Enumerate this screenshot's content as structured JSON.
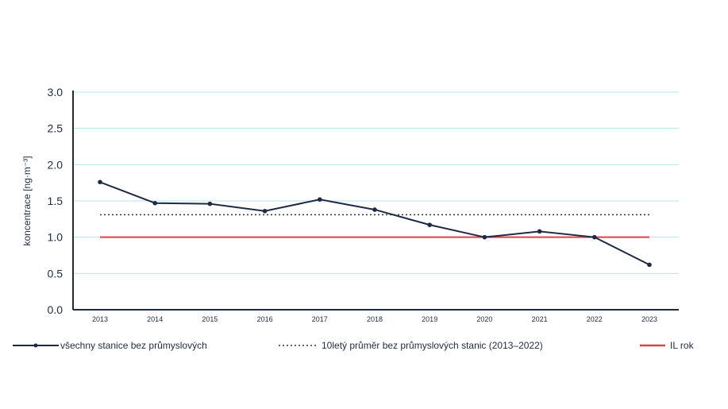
{
  "chart_data": {
    "type": "line",
    "x": [
      "2013",
      "2014",
      "2015",
      "2016",
      "2017",
      "2018",
      "2019",
      "2020",
      "2021",
      "2022",
      "2023"
    ],
    "ylabel": "koncentrace [ng·m⁻³]",
    "ylim": [
      0,
      3.0
    ],
    "yticks": [
      "0.0",
      "0.5",
      "1.0",
      "1.5",
      "2.0",
      "2.5",
      "3.0"
    ],
    "grid": true,
    "legend_position": "bottom",
    "series": [
      {
        "name": "všechny stanice bez průmyslových",
        "values": [
          1.76,
          1.47,
          1.46,
          1.36,
          1.52,
          1.38,
          1.17,
          1.0,
          1.08,
          1.0,
          0.62
        ],
        "color": "#1f2a44",
        "style": "solid-markers"
      },
      {
        "name": "10letý průměr bez průmyslových stanic (2013–2022)",
        "values": [
          1.31,
          1.31,
          1.31,
          1.31,
          1.31,
          1.31,
          1.31,
          1.31,
          1.31,
          1.31,
          1.31
        ],
        "color": "#333333",
        "style": "dotted"
      },
      {
        "name": "IL rok",
        "values": [
          1.0,
          1.0,
          1.0,
          1.0,
          1.0,
          1.0,
          1.0,
          1.0,
          1.0,
          1.0,
          1.0
        ],
        "color": "#d9434b",
        "style": "solid"
      }
    ],
    "gridline_color": "#b9e3ef",
    "axis_color": "#1f2a44"
  }
}
